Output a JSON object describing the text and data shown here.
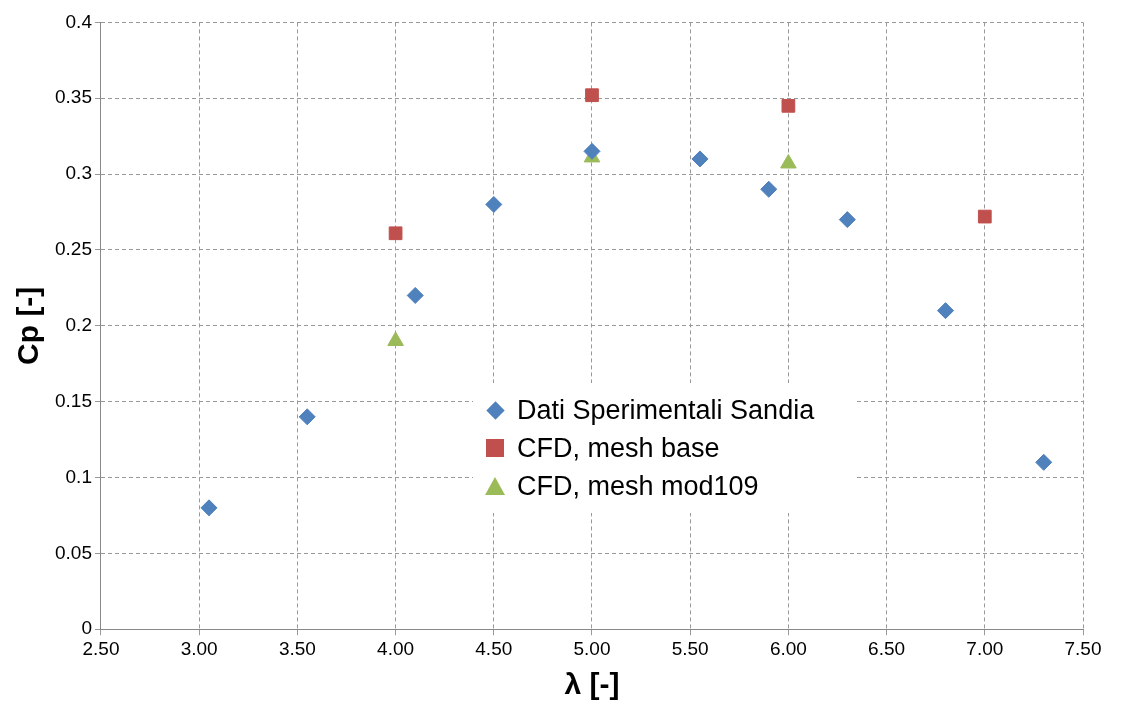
{
  "chart_data": {
    "type": "scatter",
    "xlabel": "λ [-]",
    "ylabel": "Cp [-]",
    "xlim": [
      2.5,
      7.5
    ],
    "xticks": [
      {
        "value": 2.5,
        "label": "2.50"
      },
      {
        "value": 3,
        "label": "3.00"
      },
      {
        "value": 3.5,
        "label": "3.50"
      },
      {
        "value": 4,
        "label": "4.00"
      },
      {
        "value": 4.5,
        "label": "4.50"
      },
      {
        "value": 5,
        "label": "5.00"
      },
      {
        "value": 5.5,
        "label": "5.50"
      },
      {
        "value": 6,
        "label": "6.00"
      },
      {
        "value": 6.5,
        "label": "6.50"
      },
      {
        "value": 7,
        "label": "7.00"
      },
      {
        "value": 7.5,
        "label": "7.50"
      }
    ],
    "ylim": [
      0,
      0.4
    ],
    "yticks": [
      0,
      0.05,
      0.1,
      0.15,
      0.2,
      0.25,
      0.3,
      0.35,
      0.4
    ],
    "grid": true,
    "legend": "center",
    "series": [
      {
        "name": "Dati Sperimentali Sandia",
        "color": "#4f81bd",
        "marker": "diamond",
        "x": [
          3.05,
          3.55,
          4.1,
          4.5,
          5.0,
          5.55,
          5.9,
          6.3,
          6.8,
          7.3
        ],
        "values": [
          0.08,
          0.14,
          0.22,
          0.28,
          0.315,
          0.31,
          0.29,
          0.27,
          0.21,
          0.11
        ]
      },
      {
        "name": "CFD, mesh base",
        "color": "#c0504d",
        "marker": "square",
        "x": [
          4,
          5,
          6,
          7
        ],
        "values": [
          0.261,
          0.352,
          0.345,
          0.272
        ]
      },
      {
        "name": "CFD, mesh mod109",
        "color": "#9bbb59",
        "marker": "triangle",
        "x": [
          4,
          5,
          6
        ],
        "values": [
          0.19,
          0.311,
          0.307
        ]
      }
    ]
  }
}
